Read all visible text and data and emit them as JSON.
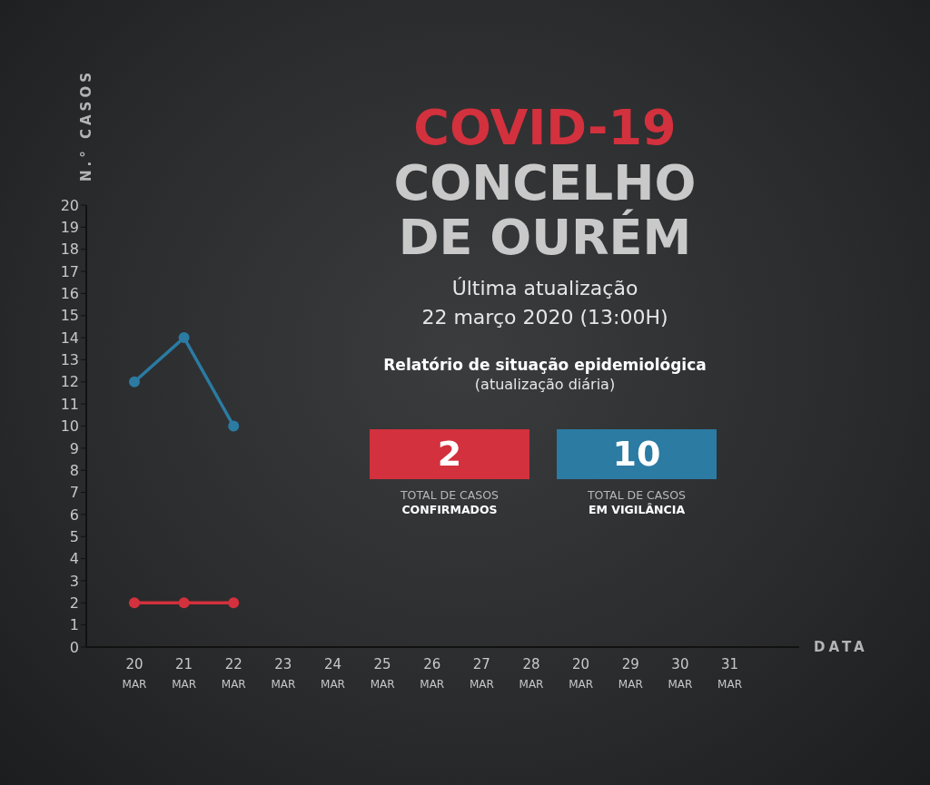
{
  "chart_data": {
    "type": "line",
    "title": "COVID-19",
    "subtitle": "CONCELHO DE OURÉM",
    "xlabel": "DATA",
    "ylabel": "N.° CASOS",
    "annotations": [
      "Última atualização\n22 março 2020 (13:00H)",
      "Relatório de situação epidemiológica",
      "(atualização diária)",
      "2",
      "TOTAL DE CASOS",
      "CONFIRMADOS",
      "10",
      "TOTAL DE CASOS",
      "EM VIGILÂNCIA"
    ],
    "categories": [
      "20 MAR",
      "21 MAR",
      "22 MAR",
      "23 MAR",
      "24 MAR",
      "25 MAR",
      "26 MAR",
      "27 MAR",
      "28 MAR",
      "20 MAR",
      "29 MAR",
      "30 MAR",
      "31 MAR"
    ],
    "series": [
      {
        "color": "#2b7ba3",
        "values": [
          12,
          14,
          10,
          null,
          null,
          null,
          null,
          null,
          null,
          null,
          null,
          null,
          null
        ]
      },
      {
        "color": "#d2313d",
        "values": [
          2,
          2,
          2,
          null,
          null,
          null,
          null,
          null,
          null,
          null,
          null,
          null,
          null
        ]
      }
    ],
    "ylim": [
      0,
      20
    ],
    "yticks": [
      0,
      1,
      2,
      3,
      4,
      5,
      6,
      7,
      8,
      9,
      10,
      11,
      12,
      13,
      14,
      15,
      16,
      17,
      18,
      19,
      20
    ],
    "grid": false,
    "legend": false,
    "marker": "circle",
    "line_style": "solid"
  }
}
